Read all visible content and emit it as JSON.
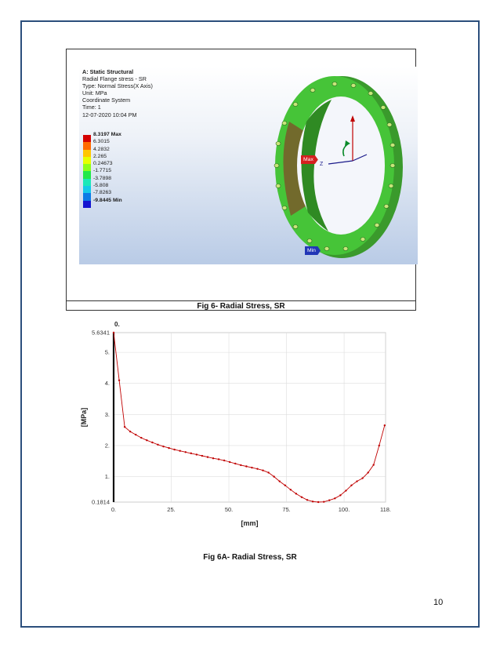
{
  "page_number": "10",
  "fig6": {
    "caption": "Fig 6- Radial Stress, SR",
    "info": {
      "title": "A: Static Structural",
      "lines": [
        "Radial Flange stress - SR",
        "Type: Normal Stress(X Axis)",
        "Unit: MPa",
        "Coordinate System",
        "Time: 1",
        "12-07-2020 10:04 PM"
      ]
    },
    "legend": [
      {
        "value": "8.3197 Max",
        "color": "#d40000",
        "bold": true
      },
      {
        "value": "6.3015",
        "color": "#ff6a00",
        "bold": false
      },
      {
        "value": "4.2832",
        "color": "#ffc600",
        "bold": false
      },
      {
        "value": "2.265",
        "color": "#e6ff00",
        "bold": false
      },
      {
        "value": "0.24673",
        "color": "#8cff1a",
        "bold": false
      },
      {
        "value": "-1.7715",
        "color": "#22e84a",
        "bold": false
      },
      {
        "value": "-3.7898",
        "color": "#1ae8b8",
        "bold": false
      },
      {
        "value": "-5.808",
        "color": "#13c9e8",
        "bold": false
      },
      {
        "value": "-7.8263",
        "color": "#0a7ae6",
        "bold": false
      },
      {
        "value": "-9.8445 Min",
        "color": "#1414d0",
        "bold": true
      }
    ],
    "max_label": "Max",
    "min_label": "Min",
    "axis_label": "Z"
  },
  "fig6a": {
    "caption": "Fig 6A- Radial Stress, SR"
  },
  "chart_data": {
    "type": "line",
    "title": "",
    "top_label": "0.",
    "xlabel": "[mm]",
    "ylabel": "[MPa]",
    "xlim": [
      0,
      118
    ],
    "ylim": [
      0.1814,
      5.6341
    ],
    "x_ticks": [
      0,
      25,
      50,
      75,
      100,
      118
    ],
    "x_tick_labels": [
      "0.",
      "25.",
      "50.",
      "75.",
      "100.",
      "118."
    ],
    "y_ticks": [
      0.1814,
      1,
      2,
      3,
      4,
      5,
      5.6341
    ],
    "y_tick_labels": [
      "0.1814",
      "1.",
      "2.",
      "3.",
      "4.",
      "5.",
      "5.6341"
    ],
    "grid": true,
    "line_color": "#c00000",
    "series": [
      {
        "x": [
          0,
          2.4,
          4.8,
          7.2,
          9.6,
          12,
          14.4,
          16.8,
          19.2,
          21.6,
          24,
          26.4,
          28.8,
          31.2,
          33.6,
          36,
          38.4,
          40.8,
          43.2,
          45.6,
          48,
          50.4,
          52.8,
          55.2,
          57.6,
          60,
          62.4,
          64.8,
          67.2,
          69.6,
          72,
          74.4,
          76.8,
          79.2,
          81.6,
          84,
          86.4,
          88.8,
          91.2,
          93.6,
          96,
          98.4,
          100.8,
          103.2,
          105.6,
          108,
          110.4,
          112.8,
          115.2,
          117.6
        ],
        "values": [
          5.6341,
          4.1,
          2.6,
          2.45,
          2.35,
          2.25,
          2.17,
          2.1,
          2.03,
          1.97,
          1.92,
          1.87,
          1.83,
          1.79,
          1.75,
          1.71,
          1.67,
          1.63,
          1.59,
          1.56,
          1.52,
          1.47,
          1.42,
          1.37,
          1.33,
          1.29,
          1.25,
          1.2,
          1.13,
          1.0,
          0.85,
          0.72,
          0.58,
          0.45,
          0.34,
          0.25,
          0.2,
          0.1814,
          0.19,
          0.24,
          0.3,
          0.4,
          0.55,
          0.72,
          0.85,
          0.95,
          1.13,
          1.38,
          2.0,
          2.65
        ]
      }
    ]
  }
}
